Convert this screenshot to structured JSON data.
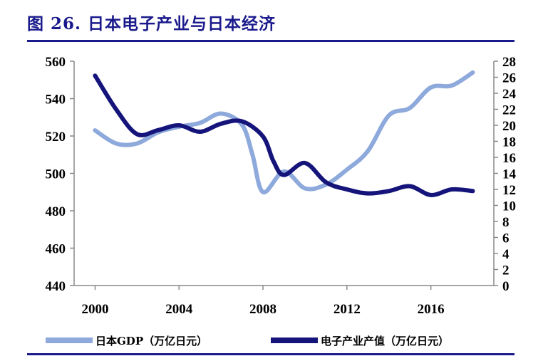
{
  "figure": {
    "title": "图 26. 日本电子产业与日本经济"
  },
  "chart_data": {
    "type": "line",
    "x_ticks": [
      "2000",
      "2004",
      "2008",
      "2012",
      "2016"
    ],
    "xlim": [
      1999,
      2019
    ],
    "y_left": {
      "ylim": [
        440,
        560
      ],
      "ticks": [
        "440",
        "460",
        "480",
        "500",
        "520",
        "540",
        "560"
      ]
    },
    "y_right": {
      "ylim": [
        0,
        28
      ],
      "ticks": [
        "0",
        "2",
        "4",
        "6",
        "8",
        "10",
        "12",
        "14",
        "16",
        "18",
        "20",
        "22",
        "24",
        "26",
        "28"
      ]
    },
    "grid": false,
    "legend_position": "bottom",
    "series": [
      {
        "name": "日本GDP（万亿日元）",
        "axis": "left",
        "color": "#8ea9db",
        "x": [
          2000,
          2001,
          2002,
          2003,
          2004,
          2005,
          2006,
          2007,
          2007.5,
          2008,
          2009,
          2010,
          2011,
          2012,
          2013,
          2014,
          2015,
          2016,
          2017,
          2018
        ],
        "values": [
          523,
          516,
          516,
          522,
          525,
          527,
          532,
          526,
          510,
          490,
          501,
          492,
          494,
          502,
          512,
          531,
          535,
          546,
          547,
          554
        ]
      },
      {
        "name": "电子产业产值（万亿日元）",
        "axis": "right",
        "color": "#14147a",
        "x": [
          2000,
          2001,
          2002,
          2003,
          2004,
          2005,
          2006,
          2007,
          2008,
          2008.5,
          2009,
          2010,
          2011,
          2012,
          2013,
          2014,
          2015,
          2016,
          2017,
          2018
        ],
        "values": [
          26.2,
          22.0,
          18.9,
          19.4,
          20.0,
          19.2,
          20.2,
          20.5,
          18.6,
          15.5,
          13.8,
          15.3,
          12.9,
          12.0,
          11.5,
          11.8,
          12.4,
          11.3,
          12.0,
          11.8
        ]
      }
    ]
  }
}
